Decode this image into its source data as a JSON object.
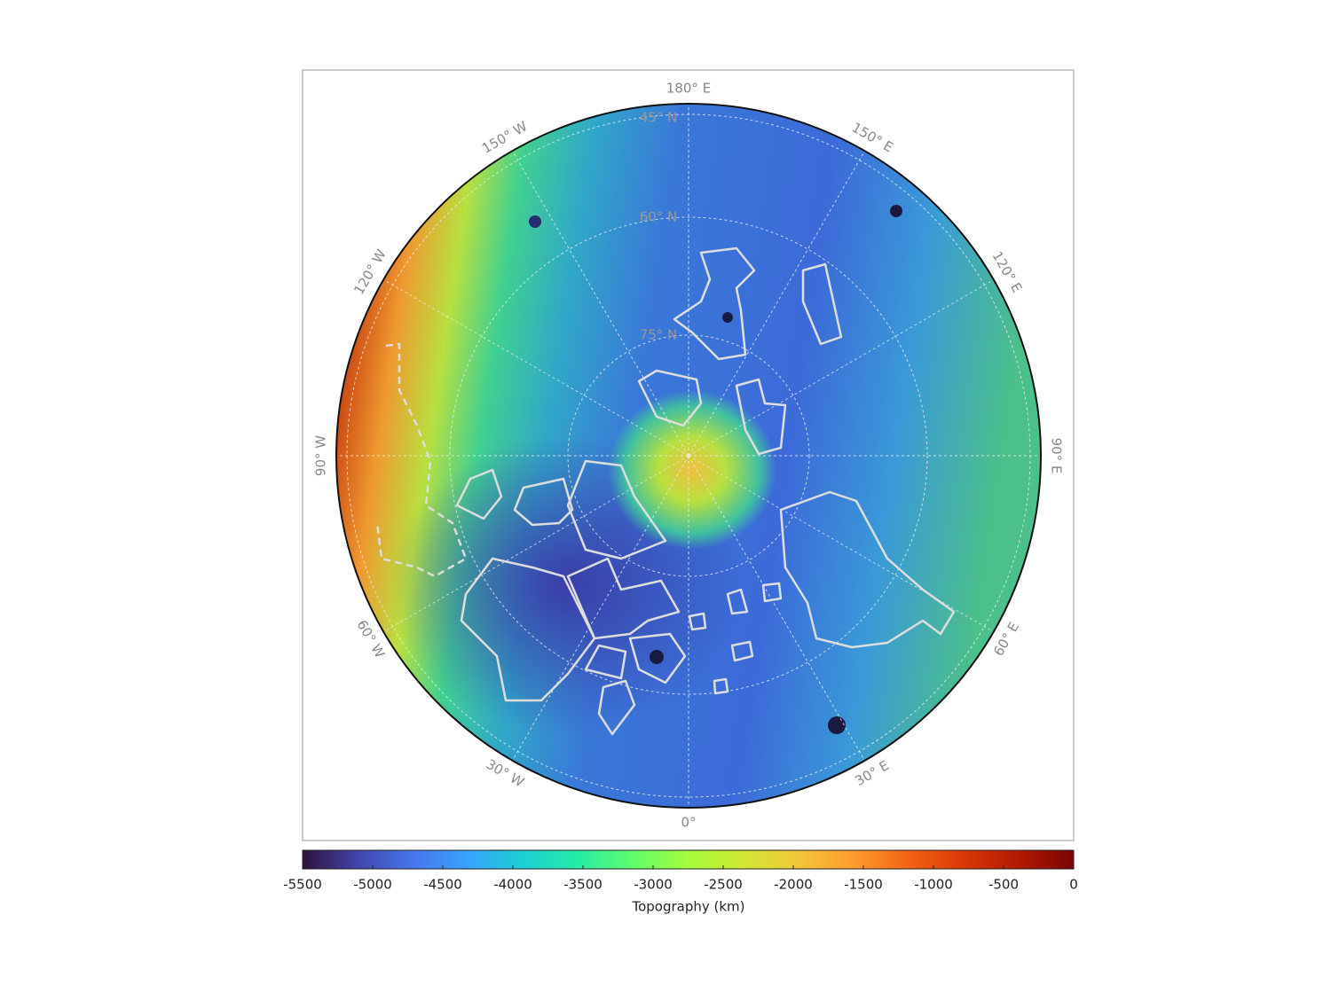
{
  "map": {
    "longitude_labels": [
      "180° E",
      "150° E",
      "120° E",
      "90° E",
      "60° E",
      "30° E",
      "0°",
      "30° W",
      "60° W",
      "90° W",
      "120° W",
      "150° W"
    ],
    "latitude_labels": [
      "45° N",
      "60° N",
      "75° N"
    ]
  },
  "colorbar": {
    "label": "Topography (km)",
    "lim": [
      -5500,
      0
    ],
    "ticks": [
      -5500,
      -5000,
      -4500,
      -4000,
      -3500,
      -3000,
      -2500,
      -2000,
      -1500,
      -1000,
      -500,
      0
    ],
    "colormap": [
      "#30123b",
      "#4145ab",
      "#4675ed",
      "#39a2fc",
      "#1bcfd4",
      "#24eca6",
      "#61fc6c",
      "#a4fc3b",
      "#d1e834",
      "#f3c63a",
      "#fe9b2d",
      "#f36315",
      "#d93806",
      "#b11901",
      "#7a0403"
    ]
  }
}
